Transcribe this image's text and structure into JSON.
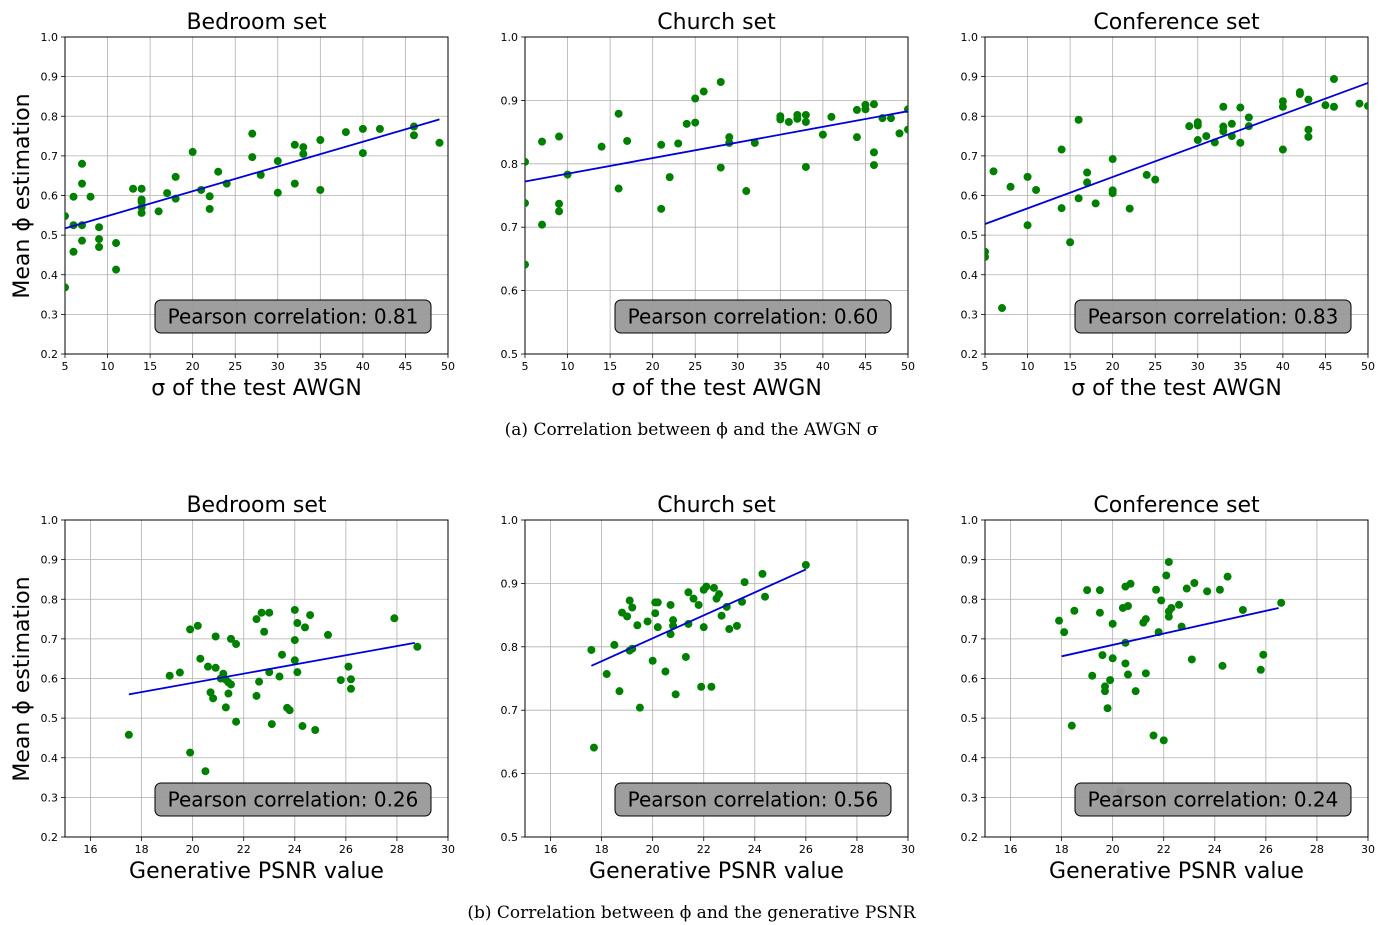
{
  "captions": {
    "a": "(a)  Correlation between ϕ and the AWGN σ",
    "b": "(b)  Correlation between ϕ and the generative PSNR"
  },
  "shared_ylabel": "Mean ϕ estimation",
  "colors": {
    "points": "#008000",
    "fit": "#0000dd",
    "grid": "#b0b0b0",
    "box": "#999999"
  },
  "chart_data": [
    {
      "type": "scatter",
      "row": 0,
      "col": 0,
      "title": "Bedroom set",
      "xlabel": "σ of the test AWGN",
      "xlim": [
        5,
        50
      ],
      "ylim": [
        0.2,
        1.0
      ],
      "xticks": [
        5,
        10,
        15,
        20,
        25,
        30,
        35,
        40,
        45,
        50
      ],
      "yticks": [
        0.2,
        0.3,
        0.4,
        0.5,
        0.6,
        0.7,
        0.8,
        0.9,
        1.0
      ],
      "annotation": "Pearson correlation: 0.81",
      "fit_line": [
        [
          5,
          0.517
        ],
        [
          49,
          0.792
        ]
      ],
      "points": [
        [
          5,
          0.548
        ],
        [
          5,
          0.368
        ],
        [
          6,
          0.597
        ],
        [
          6,
          0.525
        ],
        [
          6,
          0.458
        ],
        [
          7,
          0.68
        ],
        [
          7,
          0.63
        ],
        [
          7,
          0.525
        ],
        [
          7,
          0.486
        ],
        [
          8,
          0.597
        ],
        [
          9,
          0.52
        ],
        [
          9,
          0.49
        ],
        [
          9,
          0.47
        ],
        [
          11,
          0.48
        ],
        [
          11,
          0.413
        ],
        [
          13,
          0.617
        ],
        [
          14,
          0.617
        ],
        [
          14,
          0.59
        ],
        [
          14,
          0.584
        ],
        [
          14,
          0.57
        ],
        [
          14,
          0.556
        ],
        [
          16,
          0.56
        ],
        [
          17,
          0.606
        ],
        [
          18,
          0.647
        ],
        [
          18,
          0.592
        ],
        [
          20,
          0.71
        ],
        [
          21,
          0.614
        ],
        [
          22,
          0.598
        ],
        [
          22,
          0.566
        ],
        [
          23,
          0.66
        ],
        [
          24,
          0.63
        ],
        [
          27,
          0.756
        ],
        [
          27,
          0.697
        ],
        [
          28,
          0.652
        ],
        [
          30,
          0.687
        ],
        [
          30,
          0.607
        ],
        [
          32,
          0.728
        ],
        [
          32,
          0.63
        ],
        [
          33,
          0.722
        ],
        [
          33,
          0.705
        ],
        [
          35,
          0.74
        ],
        [
          35,
          0.614
        ],
        [
          38,
          0.76
        ],
        [
          40,
          0.768
        ],
        [
          40,
          0.707
        ],
        [
          42,
          0.768
        ],
        [
          46,
          0.774
        ],
        [
          46,
          0.752
        ],
        [
          49,
          0.733
        ]
      ]
    },
    {
      "type": "scatter",
      "row": 0,
      "col": 1,
      "title": "Church set",
      "xlabel": "σ of the test AWGN",
      "xlim": [
        5,
        50
      ],
      "ylim": [
        0.5,
        1.0
      ],
      "xticks": [
        5,
        10,
        15,
        20,
        25,
        30,
        35,
        40,
        45,
        50
      ],
      "yticks": [
        0.5,
        0.6,
        0.7,
        0.8,
        0.9,
        1.0
      ],
      "annotation": "Pearson correlation: 0.60",
      "fit_line": [
        [
          5,
          0.772
        ],
        [
          50,
          0.883
        ]
      ],
      "points": [
        [
          5,
          0.803
        ],
        [
          5,
          0.738
        ],
        [
          5,
          0.641
        ],
        [
          7,
          0.835
        ],
        [
          7,
          0.704
        ],
        [
          9,
          0.843
        ],
        [
          9,
          0.737
        ],
        [
          9,
          0.725
        ],
        [
          10,
          0.783
        ],
        [
          14,
          0.827
        ],
        [
          16,
          0.879
        ],
        [
          16,
          0.761
        ],
        [
          17,
          0.836
        ],
        [
          21,
          0.83
        ],
        [
          21,
          0.729
        ],
        [
          22,
          0.779
        ],
        [
          23,
          0.832
        ],
        [
          24,
          0.863
        ],
        [
          25,
          0.903
        ],
        [
          25,
          0.865
        ],
        [
          26,
          0.914
        ],
        [
          28,
          0.929
        ],
        [
          28,
          0.794
        ],
        [
          29,
          0.842
        ],
        [
          29,
          0.833
        ],
        [
          31,
          0.757
        ],
        [
          32,
          0.833
        ],
        [
          35,
          0.875
        ],
        [
          35,
          0.87
        ],
        [
          36,
          0.866
        ],
        [
          37,
          0.877
        ],
        [
          37,
          0.871
        ],
        [
          38,
          0.877
        ],
        [
          38,
          0.866
        ],
        [
          38,
          0.795
        ],
        [
          40,
          0.846
        ],
        [
          41,
          0.874
        ],
        [
          44,
          0.885
        ],
        [
          44,
          0.842
        ],
        [
          45,
          0.893
        ],
        [
          45,
          0.886
        ],
        [
          46,
          0.894
        ],
        [
          46,
          0.818
        ],
        [
          46,
          0.798
        ],
        [
          47,
          0.872
        ],
        [
          48,
          0.872
        ],
        [
          49,
          0.848
        ],
        [
          50,
          0.886
        ],
        [
          50,
          0.854
        ]
      ]
    },
    {
      "type": "scatter",
      "row": 0,
      "col": 2,
      "title": "Conference set",
      "xlabel": "σ of the test AWGN",
      "xlim": [
        5,
        50
      ],
      "ylim": [
        0.2,
        1.0
      ],
      "xticks": [
        5,
        10,
        15,
        20,
        25,
        30,
        35,
        40,
        45,
        50
      ],
      "yticks": [
        0.2,
        0.3,
        0.4,
        0.5,
        0.6,
        0.7,
        0.8,
        0.9,
        1.0
      ],
      "annotation": "Pearson correlation: 0.83",
      "fit_line": [
        [
          5,
          0.528
        ],
        [
          50,
          0.884
        ]
      ],
      "points": [
        [
          5,
          0.458
        ],
        [
          5,
          0.445
        ],
        [
          6,
          0.661
        ],
        [
          7,
          0.316
        ],
        [
          8,
          0.622
        ],
        [
          10,
          0.647
        ],
        [
          10,
          0.525
        ],
        [
          11,
          0.614
        ],
        [
          14,
          0.716
        ],
        [
          14,
          0.568
        ],
        [
          15,
          0.482
        ],
        [
          16,
          0.791
        ],
        [
          16,
          0.593
        ],
        [
          17,
          0.658
        ],
        [
          17,
          0.633
        ],
        [
          18,
          0.58
        ],
        [
          20,
          0.692
        ],
        [
          20,
          0.613
        ],
        [
          20,
          0.606
        ],
        [
          22,
          0.567
        ],
        [
          24,
          0.652
        ],
        [
          25,
          0.64
        ],
        [
          29,
          0.775
        ],
        [
          30,
          0.785
        ],
        [
          30,
          0.777
        ],
        [
          30,
          0.74
        ],
        [
          31,
          0.75
        ],
        [
          32,
          0.734
        ],
        [
          33,
          0.824
        ],
        [
          33,
          0.774
        ],
        [
          33,
          0.762
        ],
        [
          34,
          0.781
        ],
        [
          34,
          0.75
        ],
        [
          35,
          0.822
        ],
        [
          35,
          0.733
        ],
        [
          36,
          0.797
        ],
        [
          36,
          0.775
        ],
        [
          40,
          0.838
        ],
        [
          40,
          0.824
        ],
        [
          40,
          0.716
        ],
        [
          42,
          0.861
        ],
        [
          42,
          0.856
        ],
        [
          43,
          0.842
        ],
        [
          43,
          0.766
        ],
        [
          43,
          0.748
        ],
        [
          45,
          0.828
        ],
        [
          46,
          0.894
        ],
        [
          46,
          0.824
        ],
        [
          49,
          0.832
        ],
        [
          50,
          0.826
        ]
      ]
    },
    {
      "type": "scatter",
      "row": 1,
      "col": 0,
      "title": "Bedroom set",
      "xlabel": "Generative PSNR value",
      "xlim": [
        15,
        30
      ],
      "ylim": [
        0.2,
        1.0
      ],
      "xticks": [
        16,
        18,
        20,
        22,
        24,
        26,
        28,
        30
      ],
      "yticks": [
        0.2,
        0.3,
        0.4,
        0.5,
        0.6,
        0.7,
        0.8,
        0.9,
        1.0
      ],
      "annotation": "Pearson correlation: 0.26",
      "fit_line": [
        [
          17.5,
          0.56
        ],
        [
          28.7,
          0.69
        ]
      ],
      "points": [
        [
          17.5,
          0.458
        ],
        [
          19.1,
          0.607
        ],
        [
          19.5,
          0.615
        ],
        [
          19.9,
          0.724
        ],
        [
          19.9,
          0.413
        ],
        [
          20.2,
          0.733
        ],
        [
          20.3,
          0.65
        ],
        [
          20.5,
          0.366
        ],
        [
          20.6,
          0.63
        ],
        [
          20.7,
          0.565
        ],
        [
          20.8,
          0.55
        ],
        [
          20.9,
          0.706
        ],
        [
          20.9,
          0.627
        ],
        [
          21.1,
          0.6
        ],
        [
          21.2,
          0.612
        ],
        [
          21.3,
          0.597
        ],
        [
          21.3,
          0.527
        ],
        [
          21.4,
          0.59
        ],
        [
          21.4,
          0.562
        ],
        [
          21.5,
          0.585
        ],
        [
          21.5,
          0.7
        ],
        [
          21.7,
          0.687
        ],
        [
          21.7,
          0.491
        ],
        [
          22.5,
          0.75
        ],
        [
          22.5,
          0.556
        ],
        [
          22.6,
          0.592
        ],
        [
          22.7,
          0.766
        ],
        [
          22.8,
          0.718
        ],
        [
          23.0,
          0.766
        ],
        [
          23.0,
          0.616
        ],
        [
          23.1,
          0.485
        ],
        [
          23.4,
          0.605
        ],
        [
          23.5,
          0.66
        ],
        [
          23.7,
          0.526
        ],
        [
          23.8,
          0.52
        ],
        [
          24.0,
          0.773
        ],
        [
          24.0,
          0.697
        ],
        [
          24.0,
          0.646
        ],
        [
          24.1,
          0.616
        ],
        [
          24.1,
          0.74
        ],
        [
          24.3,
          0.48
        ],
        [
          24.4,
          0.729
        ],
        [
          24.6,
          0.76
        ],
        [
          24.8,
          0.47
        ],
        [
          25.3,
          0.71
        ],
        [
          25.8,
          0.596
        ],
        [
          26.1,
          0.63
        ],
        [
          26.2,
          0.598
        ],
        [
          26.2,
          0.574
        ],
        [
          27.9,
          0.752
        ],
        [
          28.8,
          0.68
        ]
      ]
    },
    {
      "type": "scatter",
      "row": 1,
      "col": 1,
      "title": "Church set",
      "xlabel": "Generative PSNR value",
      "xlim": [
        15,
        30
      ],
      "ylim": [
        0.5,
        1.0
      ],
      "xticks": [
        16,
        18,
        20,
        22,
        24,
        26,
        28,
        30
      ],
      "yticks": [
        0.5,
        0.6,
        0.7,
        0.8,
        0.9,
        1.0
      ],
      "annotation": "Pearson correlation: 0.56",
      "fit_line": [
        [
          17.6,
          0.77
        ],
        [
          26.0,
          0.922
        ]
      ],
      "points": [
        [
          17.6,
          0.795
        ],
        [
          17.7,
          0.641
        ],
        [
          18.2,
          0.757
        ],
        [
          18.5,
          0.803
        ],
        [
          18.7,
          0.73
        ],
        [
          18.8,
          0.854
        ],
        [
          19.0,
          0.848
        ],
        [
          19.1,
          0.873
        ],
        [
          19.1,
          0.794
        ],
        [
          19.2,
          0.862
        ],
        [
          19.2,
          0.797
        ],
        [
          19.4,
          0.834
        ],
        [
          19.5,
          0.704
        ],
        [
          19.8,
          0.84
        ],
        [
          20.0,
          0.778
        ],
        [
          20.1,
          0.87
        ],
        [
          20.1,
          0.853
        ],
        [
          20.2,
          0.87
        ],
        [
          20.2,
          0.831
        ],
        [
          20.5,
          0.761
        ],
        [
          20.7,
          0.866
        ],
        [
          20.7,
          0.82
        ],
        [
          20.8,
          0.833
        ],
        [
          20.8,
          0.842
        ],
        [
          20.9,
          0.725
        ],
        [
          21.3,
          0.784
        ],
        [
          21.4,
          0.886
        ],
        [
          21.4,
          0.836
        ],
        [
          21.6,
          0.876
        ],
        [
          21.8,
          0.866
        ],
        [
          21.9,
          0.737
        ],
        [
          22.0,
          0.89
        ],
        [
          22.0,
          0.831
        ],
        [
          22.1,
          0.895
        ],
        [
          22.3,
          0.737
        ],
        [
          22.4,
          0.893
        ],
        [
          22.5,
          0.876
        ],
        [
          22.6,
          0.883
        ],
        [
          22.7,
          0.849
        ],
        [
          22.9,
          0.863
        ],
        [
          23.0,
          0.828
        ],
        [
          23.3,
          0.833
        ],
        [
          23.5,
          0.871
        ],
        [
          23.6,
          0.902
        ],
        [
          24.3,
          0.915
        ],
        [
          24.4,
          0.879
        ],
        [
          26.0,
          0.929
        ]
      ]
    },
    {
      "type": "scatter",
      "row": 1,
      "col": 2,
      "title": "Conference set",
      "xlabel": "Generative PSNR value",
      "xlim": [
        15,
        30
      ],
      "ylim": [
        0.2,
        1.0
      ],
      "xticks": [
        16,
        18,
        20,
        22,
        24,
        26,
        28,
        30
      ],
      "yticks": [
        0.2,
        0.3,
        0.4,
        0.5,
        0.6,
        0.7,
        0.8,
        0.9,
        1.0
      ],
      "annotation": "Pearson correlation: 0.24",
      "fit_line": [
        [
          18.0,
          0.656
        ],
        [
          26.5,
          0.778
        ]
      ],
      "points": [
        [
          17.9,
          0.746
        ],
        [
          18.1,
          0.717
        ],
        [
          18.4,
          0.481
        ],
        [
          18.5,
          0.771
        ],
        [
          19.0,
          0.823
        ],
        [
          19.2,
          0.607
        ],
        [
          19.5,
          0.823
        ],
        [
          19.5,
          0.766
        ],
        [
          19.6,
          0.659
        ],
        [
          19.7,
          0.58
        ],
        [
          19.7,
          0.568
        ],
        [
          19.8,
          0.525
        ],
        [
          19.9,
          0.596
        ],
        [
          20.0,
          0.738
        ],
        [
          20.0,
          0.651
        ],
        [
          20.3,
          0.314
        ],
        [
          20.4,
          0.778
        ],
        [
          20.5,
          0.832
        ],
        [
          20.5,
          0.69
        ],
        [
          20.5,
          0.638
        ],
        [
          20.6,
          0.783
        ],
        [
          20.6,
          0.61
        ],
        [
          20.7,
          0.839
        ],
        [
          20.9,
          0.568
        ],
        [
          21.2,
          0.741
        ],
        [
          21.3,
          0.75
        ],
        [
          21.3,
          0.613
        ],
        [
          21.6,
          0.456
        ],
        [
          21.7,
          0.824
        ],
        [
          21.8,
          0.717
        ],
        [
          21.9,
          0.797
        ],
        [
          22.0,
          0.444
        ],
        [
          22.1,
          0.86
        ],
        [
          22.2,
          0.894
        ],
        [
          22.2,
          0.769
        ],
        [
          22.2,
          0.756
        ],
        [
          22.3,
          0.778
        ],
        [
          22.6,
          0.786
        ],
        [
          22.7,
          0.731
        ],
        [
          22.9,
          0.827
        ],
        [
          23.1,
          0.648
        ],
        [
          23.2,
          0.841
        ],
        [
          23.7,
          0.82
        ],
        [
          24.2,
          0.824
        ],
        [
          24.3,
          0.632
        ],
        [
          24.5,
          0.857
        ],
        [
          25.1,
          0.773
        ],
        [
          25.8,
          0.622
        ],
        [
          25.9,
          0.66
        ],
        [
          26.6,
          0.791
        ]
      ]
    }
  ]
}
